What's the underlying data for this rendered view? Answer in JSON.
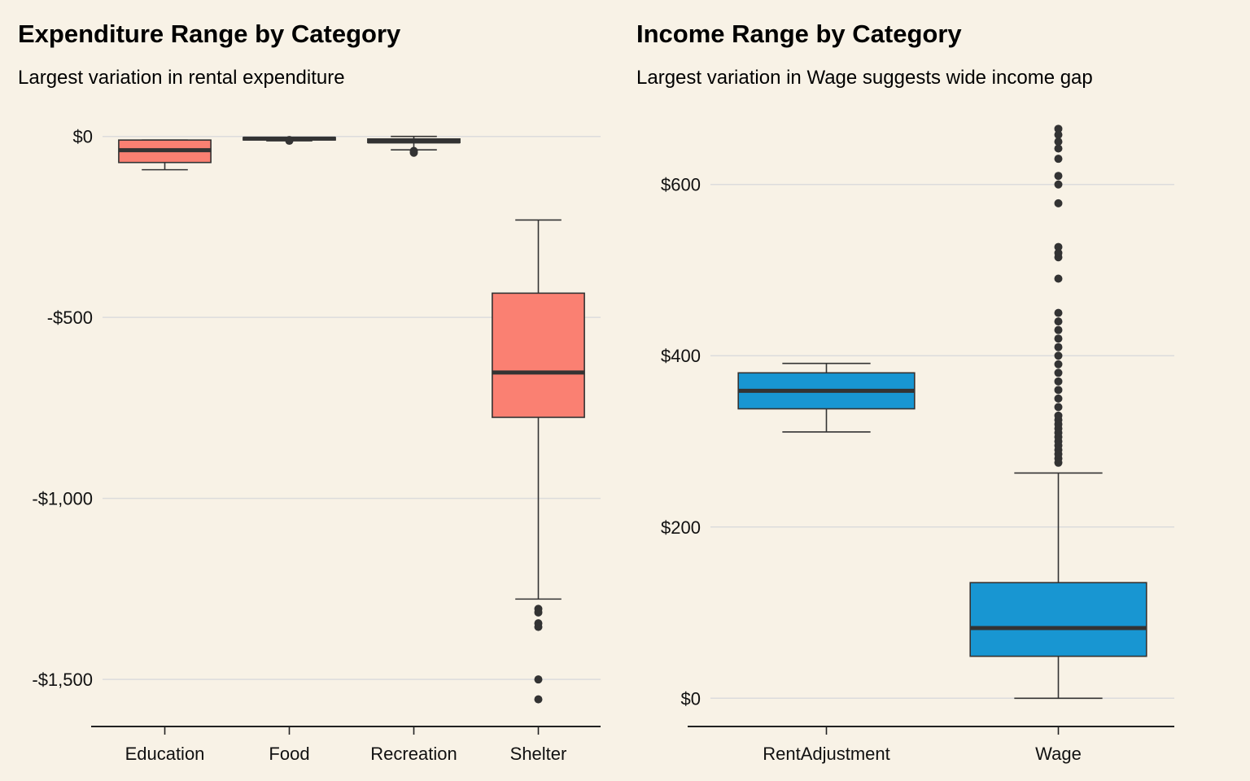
{
  "colors": {
    "background": "#f8f2e6",
    "expenditure_box": "#fa8072",
    "income_box": "#1896d2",
    "outline": "#333333",
    "grid": "#dcdcdc"
  },
  "chart_data": [
    {
      "type": "box",
      "title": "Expenditure Range by Category",
      "subtitle": "Largest variation in rental expenditure",
      "xlabel": "",
      "ylabel": "",
      "ylim": [
        -1630,
        60
      ],
      "y_ticks": [
        0,
        -500,
        -1000,
        -1500
      ],
      "y_tick_labels": [
        "$0",
        "-$500",
        "-$1,000",
        "-$1,500"
      ],
      "categories": [
        "Education",
        "Food",
        "Recreation",
        "Shelter"
      ],
      "grid": "horizontal",
      "legend": "none",
      "boxes": [
        {
          "category": "Education",
          "min": -92,
          "q1": -72,
          "median": -38,
          "q3": -10,
          "max": -10,
          "outliers": []
        },
        {
          "category": "Food",
          "min": -12,
          "q1": -8,
          "median": -6,
          "q3": -3,
          "max": -3,
          "outliers": [
            -10,
            -12
          ]
        },
        {
          "category": "Recreation",
          "min": -37,
          "q1": -17,
          "median": -14,
          "q3": -7,
          "max": 0,
          "outliers": [
            -40,
            -45
          ]
        },
        {
          "category": "Shelter",
          "min": -1278,
          "q1": -776,
          "median": -652,
          "q3": -433,
          "max": -231,
          "outliers": [
            -1305,
            -1315,
            -1345,
            -1355,
            -1500,
            -1555
          ]
        }
      ]
    },
    {
      "type": "box",
      "title": "Income Range by Category",
      "subtitle": "Largest variation in Wage suggests wide income gap",
      "xlabel": "",
      "ylabel": "",
      "ylim": [
        -33,
        690
      ],
      "y_ticks": [
        0,
        200,
        400,
        600
      ],
      "y_tick_labels": [
        "$0",
        "$200",
        "$400",
        "$600"
      ],
      "categories": [
        "RentAdjustment",
        "Wage"
      ],
      "grid": "horizontal",
      "legend": "none",
      "boxes": [
        {
          "category": "RentAdjustment",
          "min": 311,
          "q1": 338,
          "median": 359,
          "q3": 380,
          "max": 391,
          "outliers": []
        },
        {
          "category": "Wage",
          "min": 0,
          "q1": 49,
          "median": 82,
          "q3": 135,
          "max": 263,
          "outliers": [
            275,
            280,
            285,
            290,
            295,
            300,
            305,
            310,
            315,
            320,
            325,
            330,
            340,
            350,
            360,
            370,
            380,
            390,
            400,
            410,
            420,
            430,
            440,
            450,
            490,
            515,
            520,
            527,
            578,
            600,
            610,
            630,
            642,
            650,
            658,
            665
          ]
        }
      ]
    }
  ]
}
